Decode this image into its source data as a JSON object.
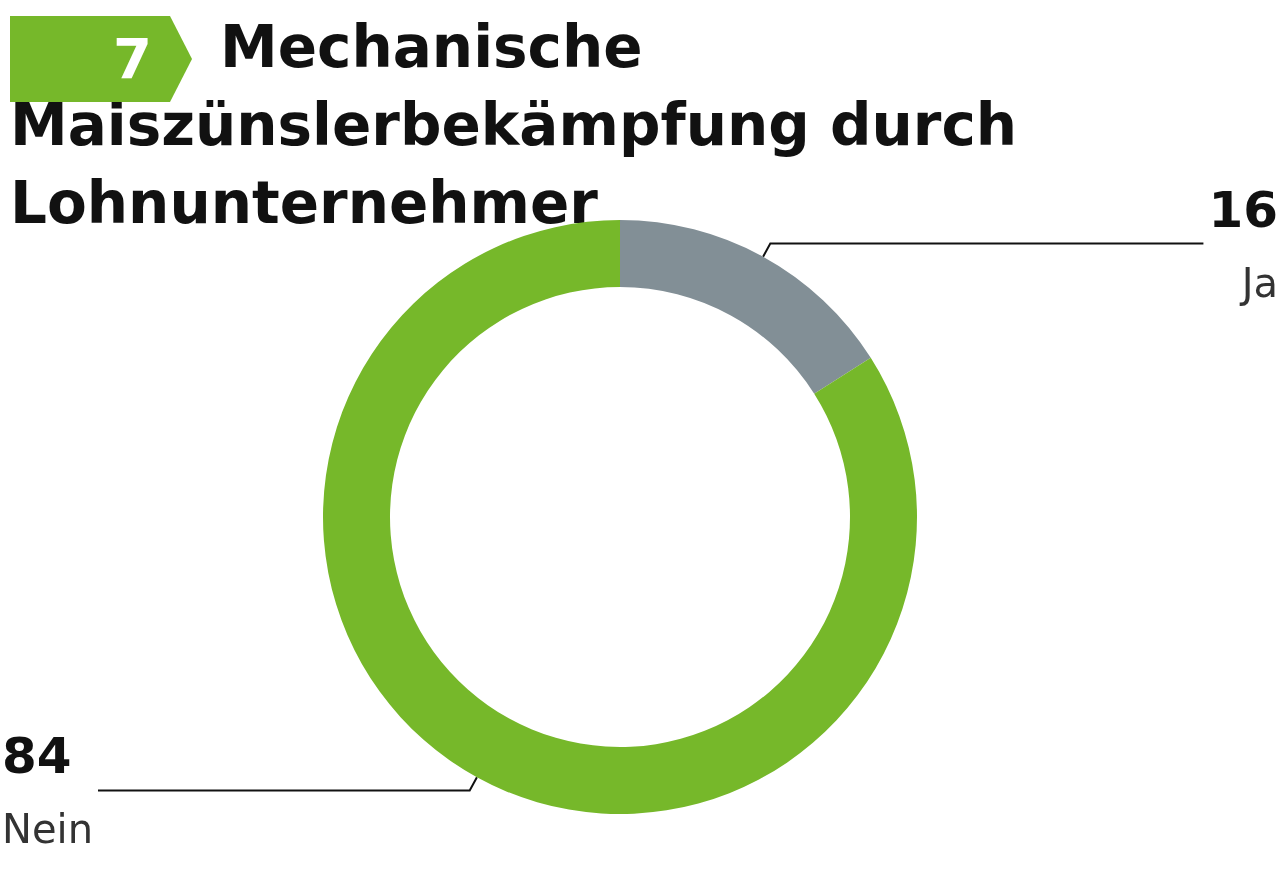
{
  "chart_data": {
    "type": "donut",
    "title": "Mechanische Maiszünslerbekämpfung durch Lohnunternehmer",
    "annotations": [
      "7"
    ],
    "categories": [
      "Ja",
      "Nein"
    ],
    "values": [
      16,
      84
    ],
    "colors": [
      "#828f96",
      "#76b82a"
    ],
    "data_labels": true,
    "legend": false
  }
}
